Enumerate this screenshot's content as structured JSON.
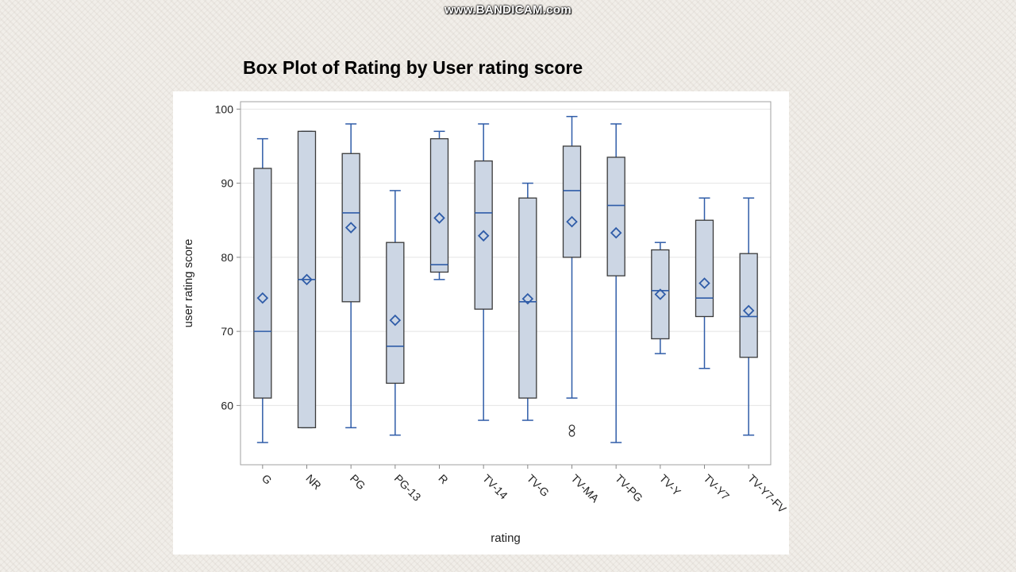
{
  "watermark": "www.BANDICAM.com",
  "chart_data": {
    "type": "box",
    "title": "Box Plot of Rating by User rating score",
    "xlabel": "rating",
    "ylabel": "user rating score",
    "ylim": [
      52,
      101
    ],
    "yticks": [
      60,
      70,
      80,
      90,
      100
    ],
    "grid": true,
    "colors": {
      "box_fill": "#ccd6e4",
      "box_edge": "#3a3a3a",
      "accent": "#2f5ca8",
      "grid": "#e4e4e4"
    },
    "categories": [
      "G",
      "NR",
      "PG",
      "PG-13",
      "R",
      "TV-14",
      "TV-G",
      "TV-MA",
      "TV-PG",
      "TV-Y",
      "TV-Y7",
      "TV-Y7-FV"
    ],
    "boxes": [
      {
        "category": "G",
        "min": 55,
        "q1": 61,
        "median": 70,
        "q3": 92,
        "max": 96,
        "mean": 74.5,
        "outliers": []
      },
      {
        "category": "NR",
        "min": 57,
        "q1": 57,
        "median": 77,
        "q3": 97,
        "max": 97,
        "mean": 77,
        "outliers": []
      },
      {
        "category": "PG",
        "min": 57,
        "q1": 74,
        "median": 86,
        "q3": 94,
        "max": 98,
        "mean": 84,
        "outliers": []
      },
      {
        "category": "PG-13",
        "min": 56,
        "q1": 63,
        "median": 68,
        "q3": 82,
        "max": 89,
        "mean": 71.5,
        "outliers": []
      },
      {
        "category": "R",
        "min": 77,
        "q1": 78,
        "median": 79,
        "q3": 96,
        "max": 97,
        "mean": 85.3,
        "outliers": []
      },
      {
        "category": "TV-14",
        "min": 58,
        "q1": 73,
        "median": 86,
        "q3": 93,
        "max": 98,
        "mean": 82.9,
        "outliers": []
      },
      {
        "category": "TV-G",
        "min": 58,
        "q1": 61,
        "median": 74,
        "q3": 88,
        "max": 90,
        "mean": 74.4,
        "outliers": []
      },
      {
        "category": "TV-MA",
        "min": 61,
        "q1": 80,
        "median": 89,
        "q3": 95,
        "max": 99,
        "mean": 84.8,
        "outliers": [
          57,
          56.2
        ]
      },
      {
        "category": "TV-PG",
        "min": 55,
        "q1": 77.5,
        "median": 87,
        "q3": 93.5,
        "max": 98,
        "mean": 83.3,
        "outliers": []
      },
      {
        "category": "TV-Y",
        "min": 67,
        "q1": 69,
        "median": 75.5,
        "q3": 81,
        "max": 82,
        "mean": 75,
        "outliers": []
      },
      {
        "category": "TV-Y7",
        "min": 65,
        "q1": 72,
        "median": 74.5,
        "q3": 85,
        "max": 88,
        "mean": 76.5,
        "outliers": []
      },
      {
        "category": "TV-Y7-FV",
        "min": 56,
        "q1": 66.5,
        "median": 72,
        "q3": 80.5,
        "max": 88,
        "mean": 72.8,
        "outliers": []
      }
    ]
  }
}
